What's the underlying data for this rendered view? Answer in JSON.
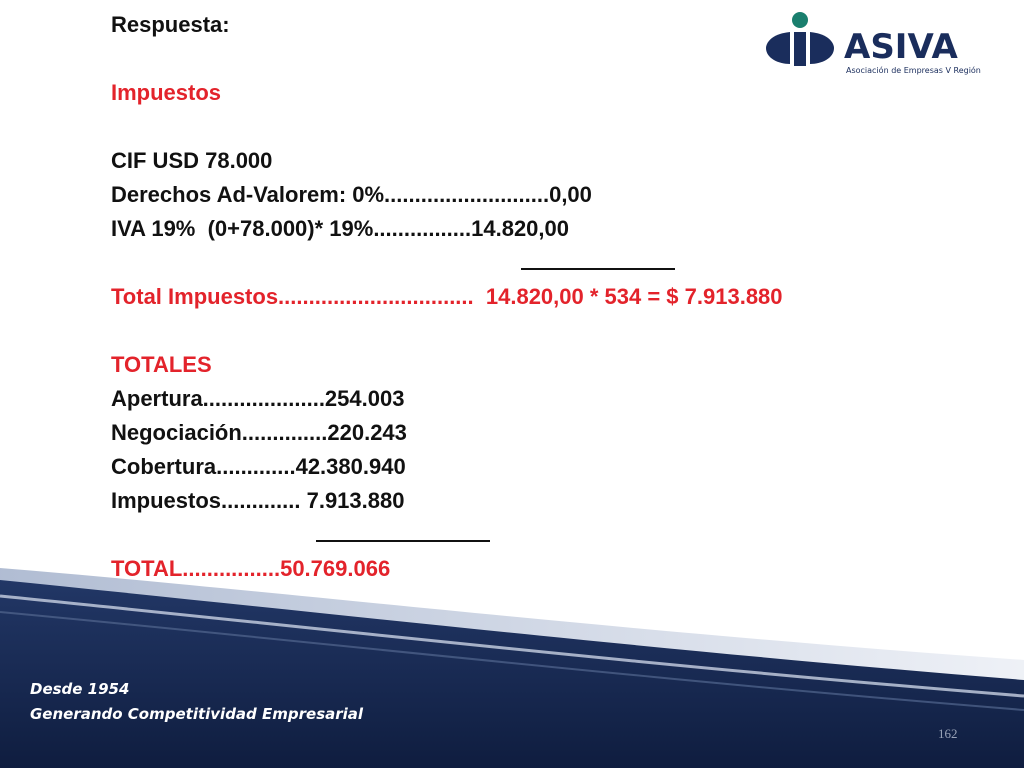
{
  "header": {
    "respuesta": "Respuesta:",
    "impuestos_title": "Impuestos"
  },
  "calc": {
    "cif": "CIF USD 78.000",
    "derechos": "Derechos Ad-Valorem: 0%...........................0,00",
    "iva": "IVA 19%  (0+78.000)* 19%................14.820,00",
    "total_impuestos": "Total Impuestos................................  14.820,00 * 534 = $ 7.913.880"
  },
  "totales": {
    "title": "TOTALES",
    "apertura": "Apertura....................254.003",
    "negociacion": "Negociación..............220.243",
    "cobertura": "Cobertura.............42.380.940",
    "impuestos": "Impuestos............. 7.913.880",
    "total": "TOTAL................50.769.066"
  },
  "logo": {
    "name": "ASIVA",
    "subtitle": "Asociación de Empresas V Región"
  },
  "footer": {
    "line1": "Desde 1954",
    "line2": "Generando Competitividad Empresarial",
    "page_number": "162"
  },
  "colors": {
    "accent_red": "#e3232b",
    "navy": "#1a2d5c",
    "logo_teal": "#1a7f6e"
  }
}
